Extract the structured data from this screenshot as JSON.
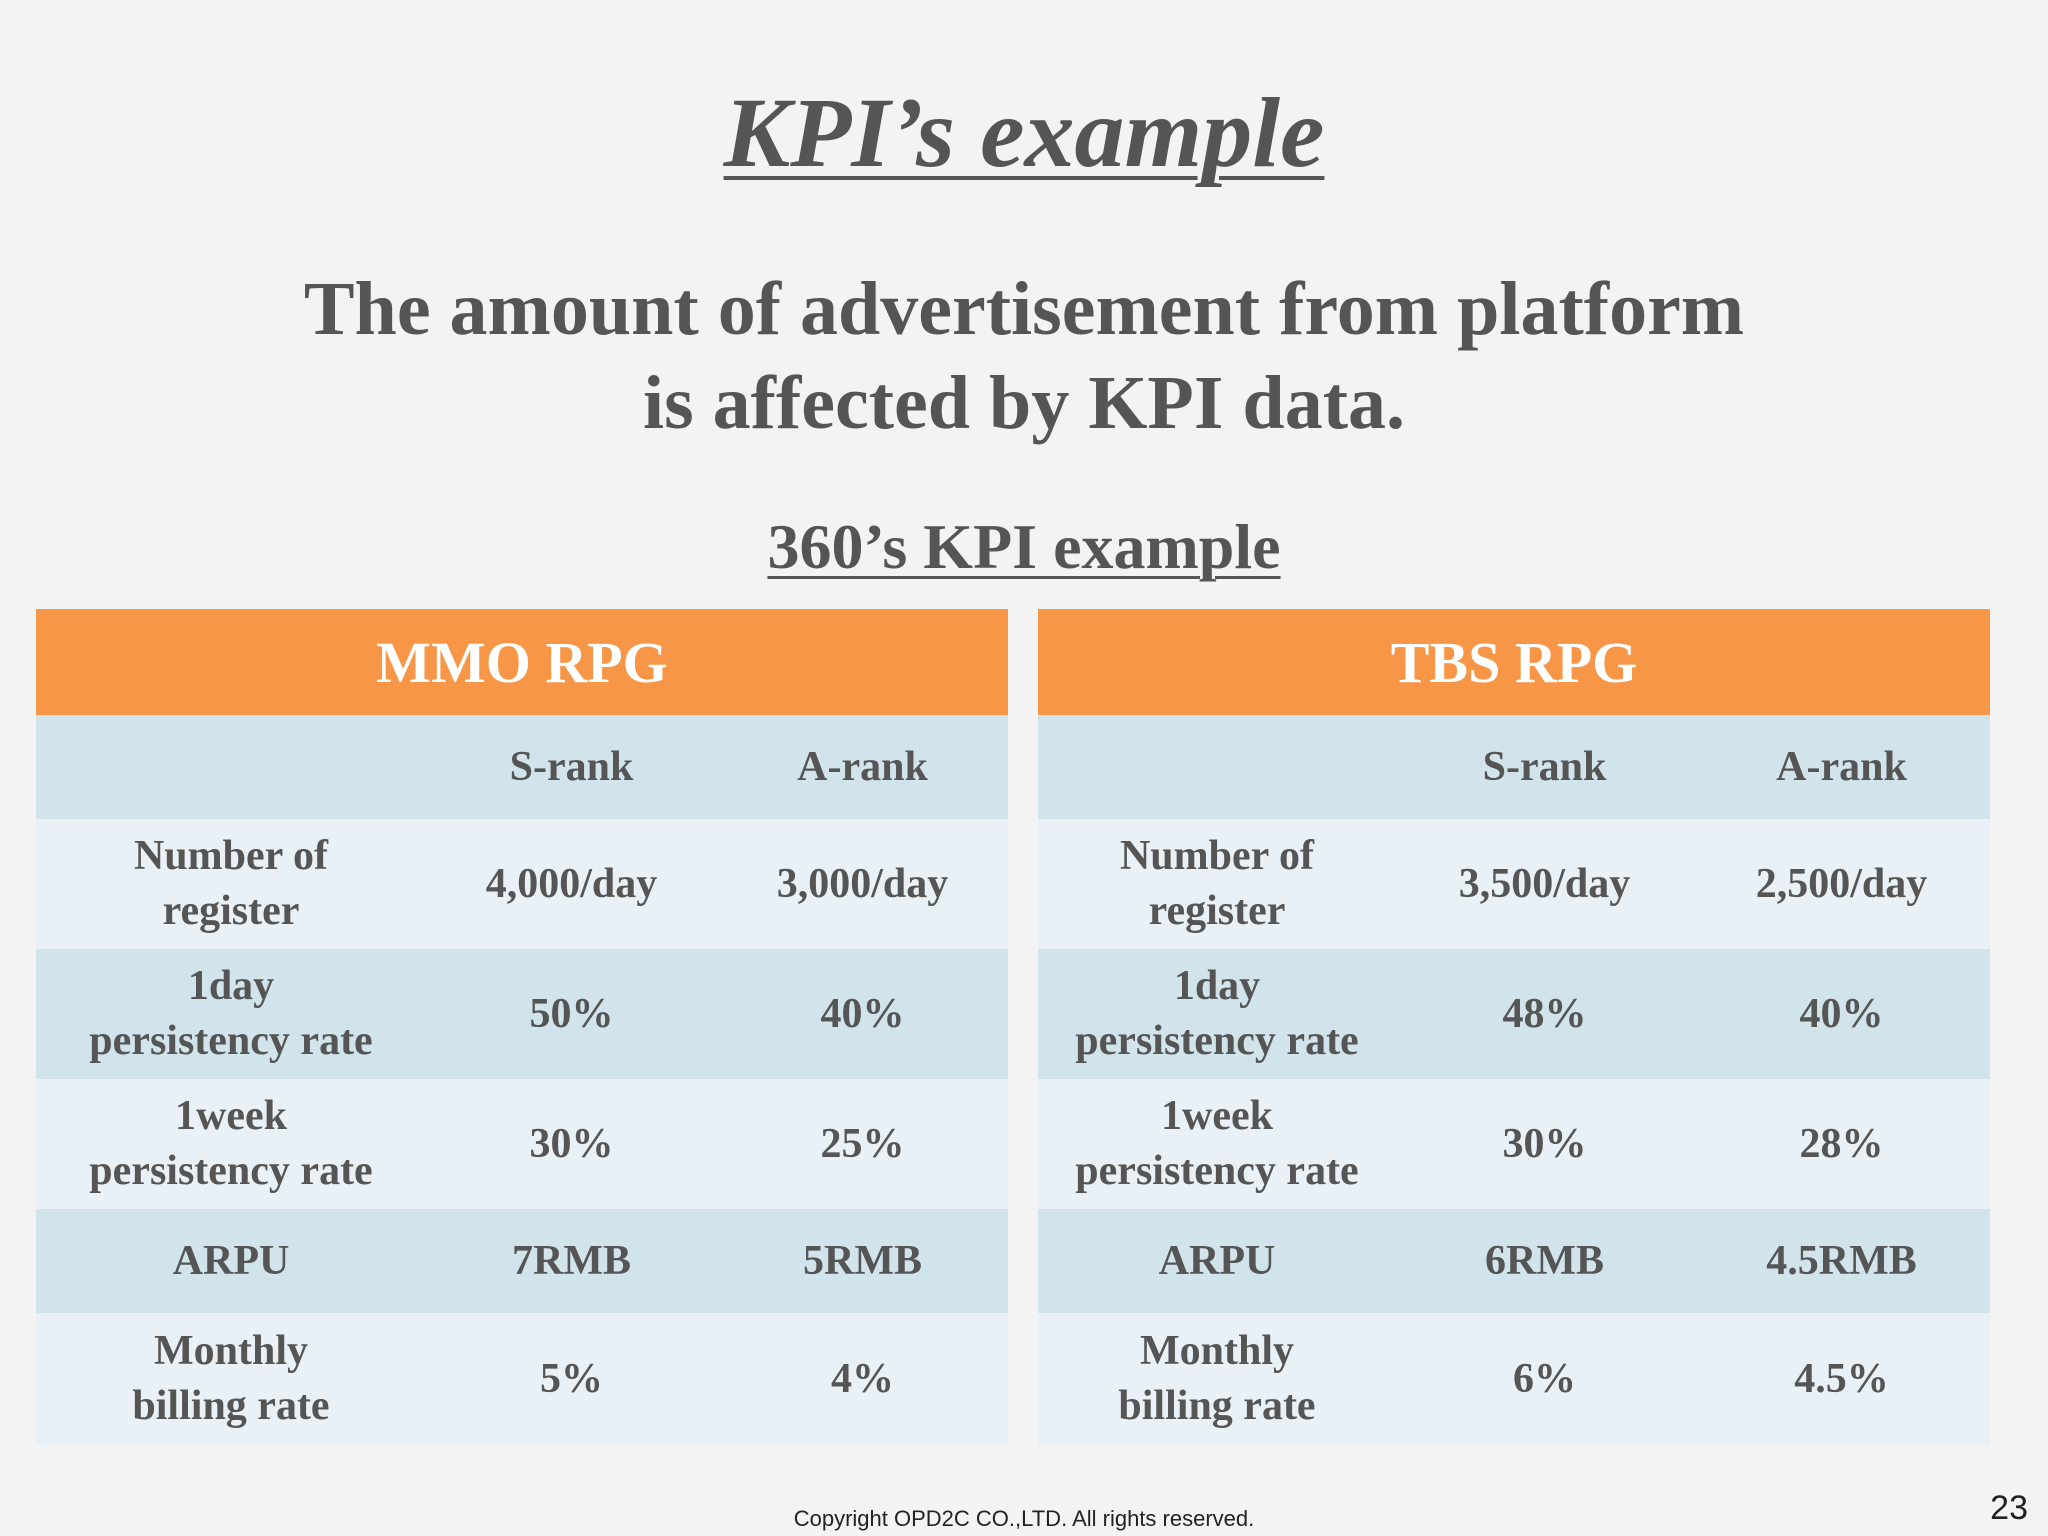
{
  "slide": {
    "title": "KPI’s example",
    "subtitle_line1": "The amount of advertisement from platform",
    "subtitle_line2": "is affected by KPI data.",
    "section_heading": "360’s KPI example",
    "copyright": "Copyright OPD2C CO.,LTD.  All rights reserved.",
    "page_number": "23"
  },
  "tables": {
    "mmo": {
      "title": "MMO RPG",
      "col_s": "S-rank",
      "col_a": "A-rank",
      "rows": [
        {
          "label1": "Number of",
          "label2": "register",
          "s": "4,000/day",
          "a": "3,000/day"
        },
        {
          "label1": "1day",
          "label2": "persistency rate",
          "s": "50%",
          "a": "40%"
        },
        {
          "label1": "1week",
          "label2": "persistency rate",
          "s": "30%",
          "a": "25%"
        },
        {
          "label1": "ARPU",
          "label2": "",
          "s": "7RMB",
          "a": "5RMB"
        },
        {
          "label1": "Monthly",
          "label2": "billing rate",
          "s": "5%",
          "a": "4%"
        }
      ]
    },
    "tbs": {
      "title": "TBS RPG",
      "col_s": "S-rank",
      "col_a": "A-rank",
      "rows": [
        {
          "label1": "Number of",
          "label2": "register",
          "s": "3,500/day",
          "a": "2,500/day"
        },
        {
          "label1": "1day",
          "label2": "persistency rate",
          "s": "48%",
          "a": "40%"
        },
        {
          "label1": "1week",
          "label2": "persistency rate",
          "s": "30%",
          "a": "28%"
        },
        {
          "label1": "ARPU",
          "label2": "",
          "s": "6RMB",
          "a": "4.5RMB"
        },
        {
          "label1": "Monthly",
          "label2": "billing rate",
          "s": "6%",
          "a": "4.5%"
        }
      ]
    }
  },
  "colors": {
    "header_orange": "#f79646",
    "band_blue": "#d1e4ec",
    "light_blue": "#e9f1f6",
    "text_gray": "#555555",
    "background": "#f3f3f3"
  }
}
